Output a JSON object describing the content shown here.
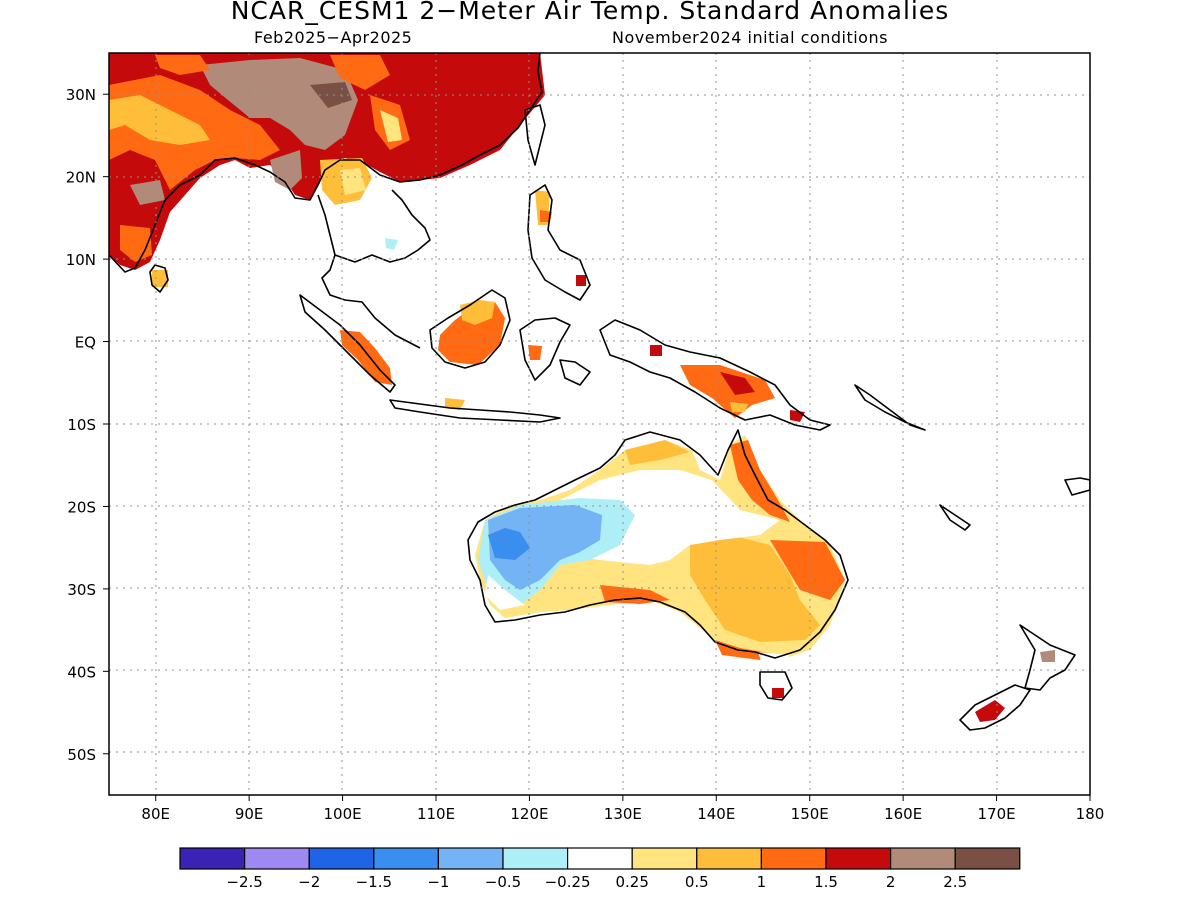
{
  "title": "NCAR_CESM1 2−Meter Air Temp. Standard Anomalies",
  "subtitle_left": "Feb2025−Apr2025",
  "subtitle_right": "November2024 initial conditions",
  "lat_labels": [
    {
      "value": 30,
      "text": "30N"
    },
    {
      "value": 20,
      "text": "20N"
    },
    {
      "value": 10,
      "text": "10N"
    },
    {
      "value": 0,
      "text": "EQ"
    },
    {
      "value": -10,
      "text": "10S"
    },
    {
      "value": -20,
      "text": "20S"
    },
    {
      "value": -30,
      "text": "30S"
    },
    {
      "value": -40,
      "text": "40S"
    },
    {
      "value": -50,
      "text": "50S"
    }
  ],
  "lon_labels": [
    {
      "value": 80,
      "text": "80E"
    },
    {
      "value": 90,
      "text": "90E"
    },
    {
      "value": 100,
      "text": "100E"
    },
    {
      "value": 110,
      "text": "110E"
    },
    {
      "value": 120,
      "text": "120E"
    },
    {
      "value": 130,
      "text": "130E"
    },
    {
      "value": 140,
      "text": "140E"
    },
    {
      "value": 150,
      "text": "150E"
    },
    {
      "value": 160,
      "text": "160E"
    },
    {
      "value": 170,
      "text": "170E"
    },
    {
      "value": 180,
      "text": "180"
    }
  ],
  "map_extent": {
    "lon": [
      75,
      180
    ],
    "lat": [
      -55,
      35
    ]
  },
  "colorbar": {
    "colors": [
      "#3a22b4",
      "#9e88f2",
      "#1f64e6",
      "#3a8ef0",
      "#74b3f4",
      "#aeeef7",
      "#ffffff",
      "#ffe480",
      "#ffbe3a",
      "#ff6a12",
      "#c40a0a",
      "#b18a7a",
      "#7a5044"
    ],
    "labels": [
      "−2.5",
      "−2",
      "−1.5",
      "−1",
      "−0.5",
      "−0.25",
      "0.25",
      "0.5",
      "1",
      "1.5",
      "2",
      "2.5"
    ]
  }
}
